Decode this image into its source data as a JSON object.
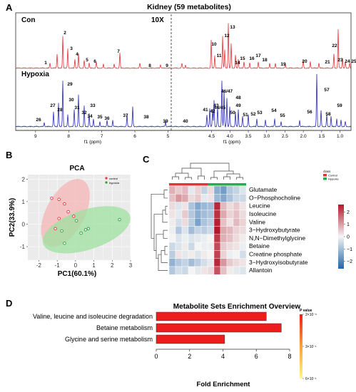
{
  "colors": {
    "control": "#e8323a",
    "hypoxia": "#2b2bbf",
    "axis": "#333333",
    "bar": "#ee1d1d",
    "control_ellipse": "#f5b5b5",
    "hypoxia_ellipse": "#9fe09f",
    "heat_low": "#2166ac",
    "heat_mid": "#f4f4f4",
    "heat_high": "#b2182b",
    "grid": "#ffffff",
    "pca_panel": "#ebebeb"
  },
  "panelA": {
    "letter": "A",
    "title": "Kidney (59 metabolites)",
    "control_label": "Con",
    "hypoxia_label": "Hypoxia",
    "zoom_label": "10X",
    "xlabel": "f1 (ppm)",
    "xlabel2": "f1 (ppm)",
    "zoom_end_ppm": 5.6,
    "tick_labels_left": [
      "9",
      "8",
      "7",
      "6",
      "5"
    ],
    "tick_labels_right": [
      "4.5",
      "4.0",
      "3.5",
      "3.0",
      "2.5",
      "2.0",
      "1.5",
      "1.0"
    ],
    "peak_labels_control": [
      "1",
      "2",
      "3",
      "4",
      "5",
      "6",
      "7",
      "8",
      "9",
      "10",
      "11",
      "12",
      "13",
      "14",
      "15",
      "16",
      "17",
      "18",
      "19",
      "20",
      "21",
      "22",
      "23",
      "24",
      "25"
    ],
    "peak_labels_hypoxia": [
      "26",
      "27",
      "28",
      "29",
      "30",
      "31",
      "32",
      "33",
      "34",
      "35",
      "36",
      "37",
      "38",
      "39",
      "40",
      "41",
      "42",
      "43",
      "44/45",
      "46/47",
      "48",
      "49",
      "50",
      "51",
      "52",
      "53",
      "54",
      "55",
      "56",
      "57",
      "58",
      "59"
    ]
  },
  "panelB": {
    "letter": "B",
    "chart_data": {
      "type": "scatter",
      "title": "PCA",
      "xlabel": "PC1(60.1%)",
      "ylabel": "PC2(33.9%)",
      "xlim": [
        -2.6,
        3.0
      ],
      "ylim": [
        -1.6,
        2.2
      ],
      "xticks": [
        "-2",
        "-1",
        "0",
        "1",
        "2",
        "3"
      ],
      "yticks": [
        "-1",
        "0",
        "1",
        "2"
      ],
      "legend": [
        "control",
        "hypoxia"
      ],
      "legend_position": "top-right",
      "series": [
        {
          "name": "control",
          "x": [
            -1.3,
            -0.9,
            -0.6,
            -0.4,
            -0.1,
            -0.9,
            -1.1
          ],
          "y": [
            1.15,
            1.1,
            0.9,
            0.55,
            0.35,
            0.25,
            -0.2
          ]
        },
        {
          "name": "hypoxia",
          "x": [
            -0.75,
            0.05,
            0.3,
            0.55,
            0.7,
            2.4,
            -0.6
          ],
          "y": [
            -0.3,
            0.15,
            -0.4,
            -0.25,
            -0.2,
            0.2,
            -0.85
          ]
        }
      ]
    }
  },
  "panelC": {
    "letter": "C",
    "chart_data": {
      "type": "heatmap",
      "rows": [
        "Glutamate",
        "O−Phosphocholine",
        "Leucine",
        "Isoleucine",
        "Valine",
        "3−Hydroxybutyrate",
        "N,N−Dimethylglycine",
        "Betaine",
        "Creatine phosphate",
        "3−Hydroxyisobutyrate",
        "Allantoin"
      ],
      "columns": 12,
      "class_groups": [
        "Control",
        "Control",
        "Control",
        "Control",
        "Control",
        "Control",
        "Hypoxia",
        "Hypoxia",
        "Hypoxia",
        "Hypoxia",
        "Hypoxia",
        "Hypoxia"
      ],
      "values": [
        [
          0.8,
          0.5,
          0.7,
          -0.2,
          0.4,
          -0.6,
          0.3,
          -1.3,
          -1.6,
          -0.8,
          -0.6,
          -0.3
        ],
        [
          0.6,
          1.1,
          0.9,
          0.3,
          0.5,
          -0.2,
          0.2,
          -1.1,
          -1.4,
          -0.9,
          -0.5,
          -0.5
        ],
        [
          0.3,
          -0.3,
          0.2,
          -0.9,
          -1.4,
          -1.1,
          -1.0,
          2.4,
          0.7,
          0.3,
          0.5,
          0.2
        ],
        [
          0.2,
          -0.2,
          0.5,
          -0.8,
          -1.3,
          -1.0,
          -0.9,
          2.3,
          0.9,
          0.4,
          0.6,
          0.3
        ],
        [
          0.1,
          -0.4,
          0.3,
          -0.7,
          -1.5,
          -0.9,
          -0.7,
          2.5,
          0.6,
          0.2,
          0.7,
          0.4
        ],
        [
          -0.1,
          -0.8,
          -0.3,
          -1.0,
          -0.6,
          -0.7,
          -0.5,
          2.6,
          0.9,
          0.7,
          0.4,
          0.3
        ],
        [
          0.0,
          -0.3,
          -0.1,
          -0.3,
          -0.2,
          -0.1,
          0.0,
          2.2,
          0.8,
          0.6,
          0.3,
          0.1
        ],
        [
          -0.5,
          -0.3,
          0.1,
          -0.5,
          0.0,
          -0.1,
          -0.1,
          2.0,
          0.5,
          0.3,
          0.2,
          -0.1
        ],
        [
          -0.7,
          0.2,
          -0.2,
          0.1,
          -0.3,
          0.1,
          0.0,
          2.1,
          0.4,
          -0.1,
          0.0,
          -0.4
        ],
        [
          -1.2,
          -0.8,
          -0.6,
          -1.0,
          -0.7,
          -0.4,
          -0.2,
          2.4,
          1.1,
          0.5,
          0.3,
          0.2
        ],
        [
          -0.8,
          -0.4,
          -0.5,
          0.0,
          -0.2,
          0.2,
          0.3,
          1.9,
          0.6,
          0.1,
          -0.2,
          -0.3
        ]
      ],
      "scale_ticks": [
        "2",
        "1",
        "0",
        "−1",
        "−2"
      ],
      "scale_range": [
        -2.6,
        2.6
      ],
      "legend_title": "class",
      "legend": [
        "Control",
        "Hypoxia"
      ]
    }
  },
  "panelD": {
    "letter": "D",
    "chart_data": {
      "type": "bar",
      "orientation": "horizontal",
      "title": "Metabolite Sets  Enrichment Overview",
      "categories": [
        "Valine, leucine and isoleucine degradation",
        "Betaine metabolism",
        "Glycine and serine metabolism"
      ],
      "values": [
        6.6,
        7.5,
        4.1
      ],
      "xlabel": "Fold Enrichment",
      "xlim": [
        0,
        8
      ],
      "xticks": [
        "0",
        "2",
        "4",
        "6",
        "8"
      ],
      "legend_title": "P value",
      "legend_ticks": [
        "2×10⁻⁵",
        "3×10⁻¹",
        "6×10⁻¹"
      ]
    }
  }
}
